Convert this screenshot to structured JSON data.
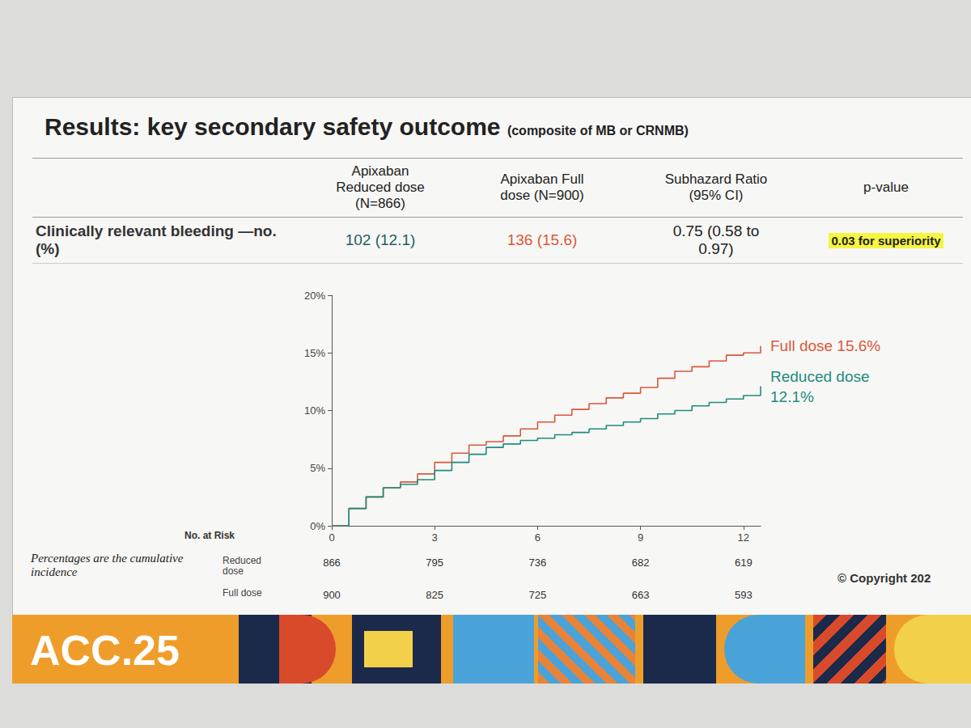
{
  "slide": {
    "title": "Results: key secondary safety outcome",
    "subtitle": "(composite of MB or CRNMB)"
  },
  "table": {
    "header": [
      "",
      "Apixaban Reduced dose (N=866)",
      "Apixaban Full dose (N=900)",
      "Subhazard Ratio (95% CI)",
      "p-value"
    ],
    "rows": [
      [
        "Clinically relevant bleeding —no. (%)",
        "102 (12.1)",
        "136 (15.6)",
        "0.75 (0.58 to 0.97)",
        "0.03 for superiority"
      ]
    ]
  },
  "chart_data": {
    "type": "line",
    "x": [
      0,
      0.5,
      1,
      1.5,
      2,
      2.5,
      3,
      3.5,
      4,
      4.5,
      5,
      5.5,
      6,
      6.5,
      7,
      7.5,
      8,
      8.5,
      9,
      9.5,
      10,
      10.5,
      11,
      11.5,
      12,
      12.5
    ],
    "series": [
      {
        "name": "Full dose",
        "color": "#d9583b",
        "label": "Full dose 15.6%",
        "values": [
          0,
          1.5,
          2.5,
          3.3,
          3.8,
          4.5,
          5.5,
          6.3,
          7.0,
          7.3,
          7.8,
          8.4,
          9.0,
          9.6,
          10.1,
          10.6,
          11.1,
          11.5,
          12.0,
          12.8,
          13.4,
          13.8,
          14.3,
          14.8,
          15.0,
          15.6
        ]
      },
      {
        "name": "Reduced dose",
        "color": "#1e8c7e",
        "label": "Reduced dose 12.1%",
        "values": [
          0,
          1.5,
          2.5,
          3.3,
          3.6,
          4.0,
          4.8,
          5.5,
          6.2,
          6.8,
          7.1,
          7.4,
          7.6,
          7.9,
          8.1,
          8.4,
          8.7,
          9.0,
          9.3,
          9.7,
          10.0,
          10.4,
          10.7,
          11.0,
          11.3,
          12.1
        ]
      }
    ],
    "xlim": [
      0,
      12.5
    ],
    "xticks": [
      0,
      3,
      6,
      9,
      12
    ],
    "ylim": [
      0,
      20
    ],
    "yticks": [
      {
        "value": 0,
        "label": "0%"
      },
      {
        "value": 5,
        "label": "5%"
      },
      {
        "value": 10,
        "label": "10%"
      },
      {
        "value": 15,
        "label": "15%"
      },
      {
        "value": 20,
        "label": "20%"
      }
    ],
    "grid": false,
    "line_style": "step"
  },
  "risk_table": {
    "title": "No. at Risk",
    "rows": [
      {
        "name": "Reduced dose",
        "values": [
          866,
          795,
          736,
          682,
          619
        ]
      },
      {
        "name": "Full dose",
        "values": [
          900,
          825,
          725,
          663,
          593
        ]
      }
    ]
  },
  "footnote": "Percentages are the cumulative incidence",
  "copyright": "© Copyright 202",
  "banner": "ACC.25"
}
